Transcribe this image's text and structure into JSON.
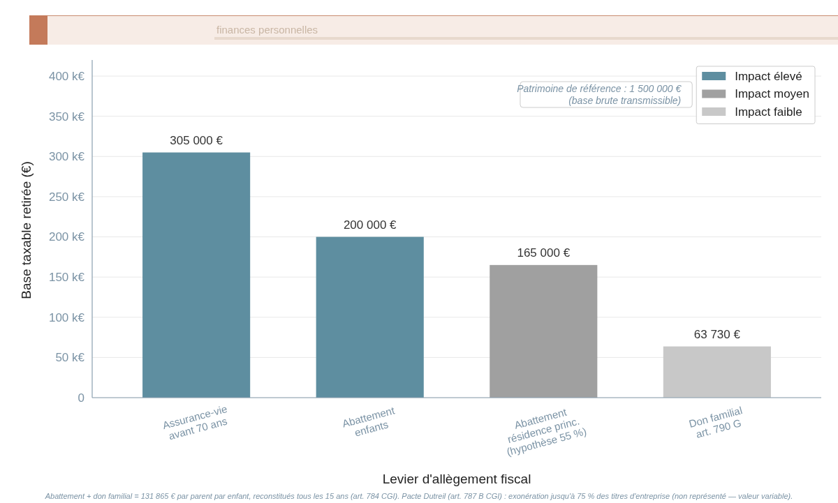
{
  "chart_data": {
    "type": "bar",
    "subtitle": "finances personnelles",
    "xlabel": "Levier d'allègement fiscal",
    "ylabel": "Base taxable retirée (€)",
    "categories": [
      "Assurance-vie\navant 70 ans",
      "Abattement\nenfants",
      "Abattement\nrésidence princ.\n(hypothèse 55 %)",
      "Don familial\nart. 790 G"
    ],
    "series": [
      {
        "name": "Impact élevé",
        "color": "#5e8ea0",
        "values": [
          305000,
          200000,
          null,
          null
        ],
        "value_labels": [
          "305 000 €",
          "200 000 €",
          null,
          null
        ]
      },
      {
        "name": "Impact moyen",
        "color": "#a0a0a0",
        "values": [
          null,
          null,
          165000,
          null
        ],
        "value_labels": [
          null,
          null,
          "165 000 €",
          null
        ]
      },
      {
        "name": "Impact faible",
        "color": "#c8c8c8",
        "values": [
          null,
          null,
          null,
          63730
        ],
        "value_labels": [
          null,
          null,
          null,
          "63 730 €"
        ]
      }
    ],
    "stacked": true,
    "ylim": [
      0,
      420000
    ],
    "yticks": [
      0,
      {
        "value": 50000,
        "label": "50 k€"
      },
      {
        "value": 100000,
        "label": "100 k€"
      },
      {
        "value": 150000,
        "label": "150 k€"
      },
      {
        "value": 200000,
        "label": "200 k€"
      },
      {
        "value": 250000,
        "label": "250 k€"
      },
      {
        "value": 300000,
        "label": "300 k€"
      },
      {
        "value": 350000,
        "label": "350 k€"
      },
      {
        "value": 400000,
        "label": "400 k€"
      }
    ],
    "grid": "y",
    "legend": "top right",
    "annotations": [
      "Patrimoine de référence : 1 500 000 €\n(base brute transmissible)",
      "Abattement + don familial = 131 865 € par parent par enfant, reconstitués tous les 15 ans (art. 784 CGI). Pacte Dutreil (art. 787 B CGI) : exonération jusqu'à 75 % des titres d'entreprise (non représenté — valeur variable)."
    ]
  }
}
